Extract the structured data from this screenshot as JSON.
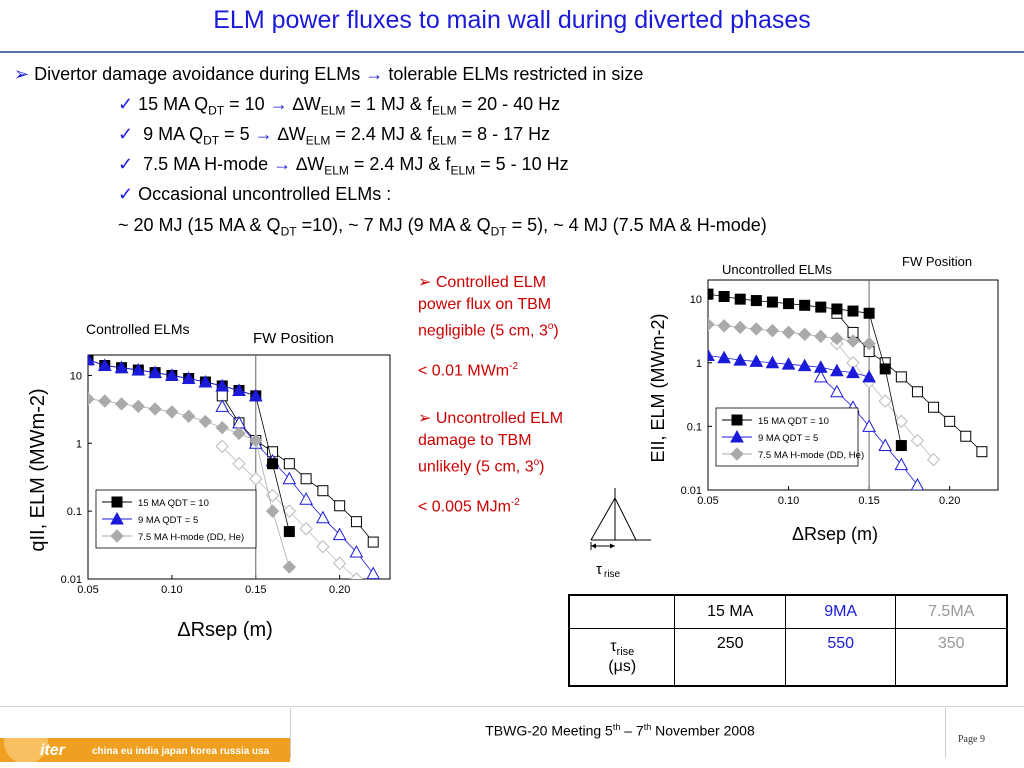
{
  "title": "ELM power fluxes to main wall during diverted phases",
  "bullets": {
    "main_pre": "Divertor damage avoidance during ELMs",
    "main_post": "tolerable ELMs restricted in size",
    "c1": {
      "a": "15 MA Q",
      "sub1": "DT",
      "b": " = 10 ",
      "c": "W",
      "sub2": "ELM",
      "d": " = 1 MJ   &   f",
      "sub3": "ELM",
      "e": " = 20 - 40 Hz"
    },
    "c2": {
      "a": "9 MA Q",
      "sub1": "DT",
      "b": " = 5 ",
      "c": "W",
      "sub2": "ELM",
      "d": " = 2.4 MJ  &   f",
      "sub3": "ELM",
      "e": " = 8 - 17 Hz"
    },
    "c3": {
      "a": "7.5 MA H-mode ",
      "c": "W",
      "sub2": "ELM",
      "d": " = 2.4 MJ   &   f",
      "sub3": "ELM",
      "e": " = 5 - 10 Hz"
    },
    "c4": "Occasional uncontrolled ELMs :",
    "uncontrolled": {
      "a": "~ 20 MJ (15 MA & Q",
      "sub1": "DT",
      "b": " =10), ~ 7 MJ (9 MA & Q",
      "sub2": "DT",
      "c": " = 5), ~ 4 MJ (7.5 MA & H-mode)"
    }
  },
  "notes": {
    "n1_l1": "Controlled ELM",
    "n1_l2": "power flux on TBM",
    "n1_l3": "negligible (5 cm, 3",
    "n1_sup": "o",
    "n1_end": ")",
    "n1_val": "< 0.01 MWm",
    "n1_val_sup": "-2",
    "n2_l1": "Uncontrolled ELM",
    "n2_l2": "damage to TBM",
    "n2_l3": "unlikely (5 cm, 3",
    "n2_sup": "o",
    "n2_end": ")",
    "n2_val": "< 0.005 MJm",
    "n2_val_sup": "-2"
  },
  "triangle_label": "rise",
  "table": {
    "headers": [
      "",
      "15 MA",
      "9MA",
      "7.5MA"
    ],
    "row_label_main": "rise",
    "row_label_unit": "(μs)",
    "values": [
      "250",
      "550",
      "350"
    ],
    "colors": {
      "15MA": "#000000",
      "9MA": "#1a1ad8",
      "7.5MA": "#999999"
    }
  },
  "footer": {
    "text_a": "TBWG-20 Meeting 5",
    "sup_a": "th",
    "text_b": " – 7",
    "sup_b": "th",
    "text_c": " November 2008",
    "page": "Page 9",
    "logo_text": "iter",
    "logo_partners": "china eu india japan korea russia usa"
  },
  "chart_data": [
    {
      "type": "scatter",
      "title": "Controlled ELMs",
      "annotation": "FW Position",
      "xlabel": "ΔRsep (m)",
      "ylabel": "qII, ELM (MWm-2)",
      "xlim": [
        0.05,
        0.23
      ],
      "ylim": [
        0.01,
        20
      ],
      "yscale": "log",
      "x_ticks": [
        "0.05",
        "0.10",
        "0.15",
        "0.20"
      ],
      "y_ticks": [
        "0.01",
        "0.1",
        "1",
        "10"
      ],
      "fw_position": 0.15,
      "legend_placement": "center-right",
      "series": [
        {
          "name": "15 MA QDT = 10",
          "marker": "square",
          "color": "#000000",
          "x": [
            0.05,
            0.06,
            0.07,
            0.08,
            0.09,
            0.1,
            0.11,
            0.12,
            0.13,
            0.14,
            0.15,
            0.16,
            0.17
          ],
          "y": [
            17,
            14,
            13,
            12,
            11,
            10,
            9,
            8,
            7,
            6,
            5,
            0.5,
            0.05
          ]
        },
        {
          "name": "9 MA QDT = 5",
          "marker": "triangle",
          "color": "#1a1ad8",
          "x": [
            0.05,
            0.06,
            0.07,
            0.08,
            0.09,
            0.1,
            0.11,
            0.12,
            0.13,
            0.14,
            0.15
          ],
          "y": [
            17,
            14,
            13,
            12,
            11,
            10,
            9,
            8,
            7,
            6,
            5
          ]
        },
        {
          "name": "7.5 MA H-mode (DD, He)",
          "marker": "diamond",
          "color": "#aaaaaa",
          "x": [
            0.05,
            0.06,
            0.07,
            0.08,
            0.09,
            0.1,
            0.11,
            0.12,
            0.13,
            0.14,
            0.15,
            0.16,
            0.17
          ],
          "y": [
            4.5,
            4.2,
            3.8,
            3.5,
            3.2,
            2.9,
            2.5,
            2.1,
            1.7,
            1.4,
            1.1,
            0.1,
            0.015
          ]
        }
      ],
      "open_series": [
        {
          "marker": "square-open",
          "color": "#000000",
          "x": [
            0.13,
            0.14,
            0.15,
            0.16,
            0.17,
            0.18,
            0.19,
            0.2,
            0.21,
            0.22
          ],
          "y": [
            5,
            2,
            1.1,
            0.75,
            0.5,
            0.3,
            0.2,
            0.12,
            0.07,
            0.035
          ]
        },
        {
          "marker": "triangle-open",
          "color": "#1a1ad8",
          "x": [
            0.13,
            0.14,
            0.15,
            0.16,
            0.17,
            0.18,
            0.19,
            0.2,
            0.21,
            0.22
          ],
          "y": [
            3.5,
            2,
            1,
            0.55,
            0.3,
            0.15,
            0.08,
            0.045,
            0.025,
            0.012
          ]
        },
        {
          "marker": "diamond-open",
          "color": "#aaaaaa",
          "x": [
            0.13,
            0.14,
            0.15,
            0.16,
            0.17,
            0.18,
            0.19,
            0.2,
            0.21
          ],
          "y": [
            0.9,
            0.5,
            0.3,
            0.17,
            0.1,
            0.055,
            0.03,
            0.017,
            0.01
          ]
        }
      ]
    },
    {
      "type": "scatter",
      "title": "Uncontrolled ELMs",
      "annotation": "FW Position",
      "xlabel": "ΔRsep (m)",
      "ylabel": "EII, ELM (MWm-2)",
      "xlim": [
        0.05,
        0.23
      ],
      "ylim": [
        0.01,
        20
      ],
      "yscale": "log",
      "x_ticks": [
        "0.05",
        "0.10",
        "0.15",
        "0.20"
      ],
      "y_ticks": [
        "0.01",
        "0.1",
        "1",
        "10"
      ],
      "fw_position": 0.15,
      "legend_placement": "center-right",
      "series": [
        {
          "name": "15 MA QDT = 10",
          "marker": "square",
          "color": "#000000",
          "x": [
            0.05,
            0.06,
            0.07,
            0.08,
            0.09,
            0.1,
            0.11,
            0.12,
            0.13,
            0.14,
            0.15,
            0.16,
            0.17
          ],
          "y": [
            12,
            11,
            10,
            9.5,
            9,
            8.5,
            8,
            7.5,
            7,
            6.5,
            6,
            0.8,
            0.05
          ]
        },
        {
          "name": "9 MA QDT = 5",
          "marker": "triangle",
          "color": "#1a1ad8",
          "x": [
            0.05,
            0.06,
            0.07,
            0.08,
            0.09,
            0.1,
            0.11,
            0.12,
            0.13,
            0.14,
            0.15
          ],
          "y": [
            1.3,
            1.2,
            1.1,
            1.05,
            1,
            0.95,
            0.9,
            0.85,
            0.75,
            0.7,
            0.6
          ]
        },
        {
          "name": "7.5 MA H-mode (DD, He)",
          "marker": "diamond",
          "color": "#aaaaaa",
          "x": [
            0.05,
            0.06,
            0.07,
            0.08,
            0.09,
            0.1,
            0.11,
            0.12,
            0.13,
            0.14,
            0.15
          ],
          "y": [
            4,
            3.8,
            3.6,
            3.4,
            3.2,
            3,
            2.8,
            2.6,
            2.4,
            2.2,
            2
          ]
        }
      ],
      "open_series": [
        {
          "marker": "square-open",
          "color": "#000000",
          "x": [
            0.13,
            0.14,
            0.15,
            0.16,
            0.17,
            0.18,
            0.19,
            0.2,
            0.21,
            0.22
          ],
          "y": [
            6,
            3,
            1.5,
            1,
            0.6,
            0.35,
            0.2,
            0.12,
            0.07,
            0.04
          ]
        },
        {
          "marker": "triangle-open",
          "color": "#1a1ad8",
          "x": [
            0.12,
            0.13,
            0.14,
            0.15,
            0.16,
            0.17,
            0.18
          ],
          "y": [
            0.6,
            0.35,
            0.2,
            0.1,
            0.05,
            0.025,
            0.012
          ]
        },
        {
          "marker": "diamond-open",
          "color": "#aaaaaa",
          "x": [
            0.13,
            0.14,
            0.15,
            0.16,
            0.17,
            0.18,
            0.19
          ],
          "y": [
            2,
            1,
            0.5,
            0.25,
            0.12,
            0.06,
            0.03
          ]
        }
      ]
    }
  ]
}
